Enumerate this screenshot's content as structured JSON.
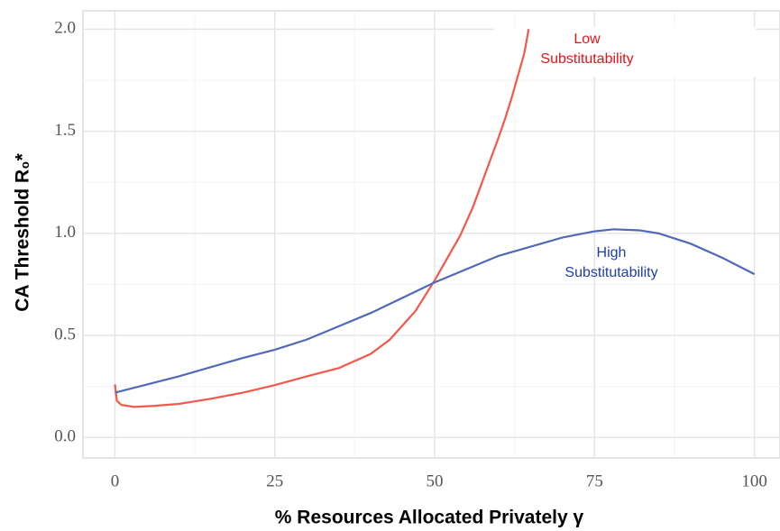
{
  "chart_data": {
    "type": "line",
    "xlabel": "% Resources Allocated Privately γ",
    "ylabel": "CA Threshold R₀*",
    "xlim": [
      -5,
      104
    ],
    "ylim": [
      -0.1,
      2.09
    ],
    "xticks": [
      0,
      25,
      50,
      75,
      100
    ],
    "yticks": [
      {
        "value": 0,
        "label": "0.0"
      },
      0.5,
      {
        "value": 1,
        "label": "1.0"
      },
      1.5,
      {
        "value": 2,
        "label": "2.0"
      }
    ],
    "grid": true,
    "series": [
      {
        "name": "Low Substitutability",
        "color": "#f2584c",
        "x": [
          0,
          0.3,
          1,
          3,
          6,
          10,
          15,
          20,
          25,
          30,
          35,
          40,
          43,
          45,
          47,
          50,
          52,
          54,
          56,
          58,
          60,
          61,
          62,
          63,
          64,
          64.7
        ],
        "values": [
          0.26,
          0.18,
          0.16,
          0.15,
          0.155,
          0.165,
          0.19,
          0.22,
          0.257,
          0.3,
          0.34,
          0.41,
          0.48,
          0.55,
          0.62,
          0.77,
          0.88,
          0.99,
          1.13,
          1.3,
          1.47,
          1.56,
          1.66,
          1.77,
          1.88,
          2.0
        ]
      },
      {
        "name": "High Substitutability",
        "color": "#5069b8",
        "x": [
          0,
          10,
          20,
          25,
          30,
          40,
          50,
          60,
          70,
          75,
          78,
          82,
          85,
          90,
          95,
          100
        ],
        "values": [
          0.22,
          0.3,
          0.39,
          0.43,
          0.48,
          0.61,
          0.76,
          0.89,
          0.98,
          1.01,
          1.02,
          1.015,
          1.0,
          0.95,
          0.88,
          0.8
        ]
      }
    ],
    "annotations": [
      {
        "lines": [
          "Low",
          "Substitutability"
        ],
        "color": "#e8121b"
      },
      {
        "lines": [
          "High",
          "Substitutability"
        ],
        "color": "#1f3fa6"
      }
    ]
  }
}
